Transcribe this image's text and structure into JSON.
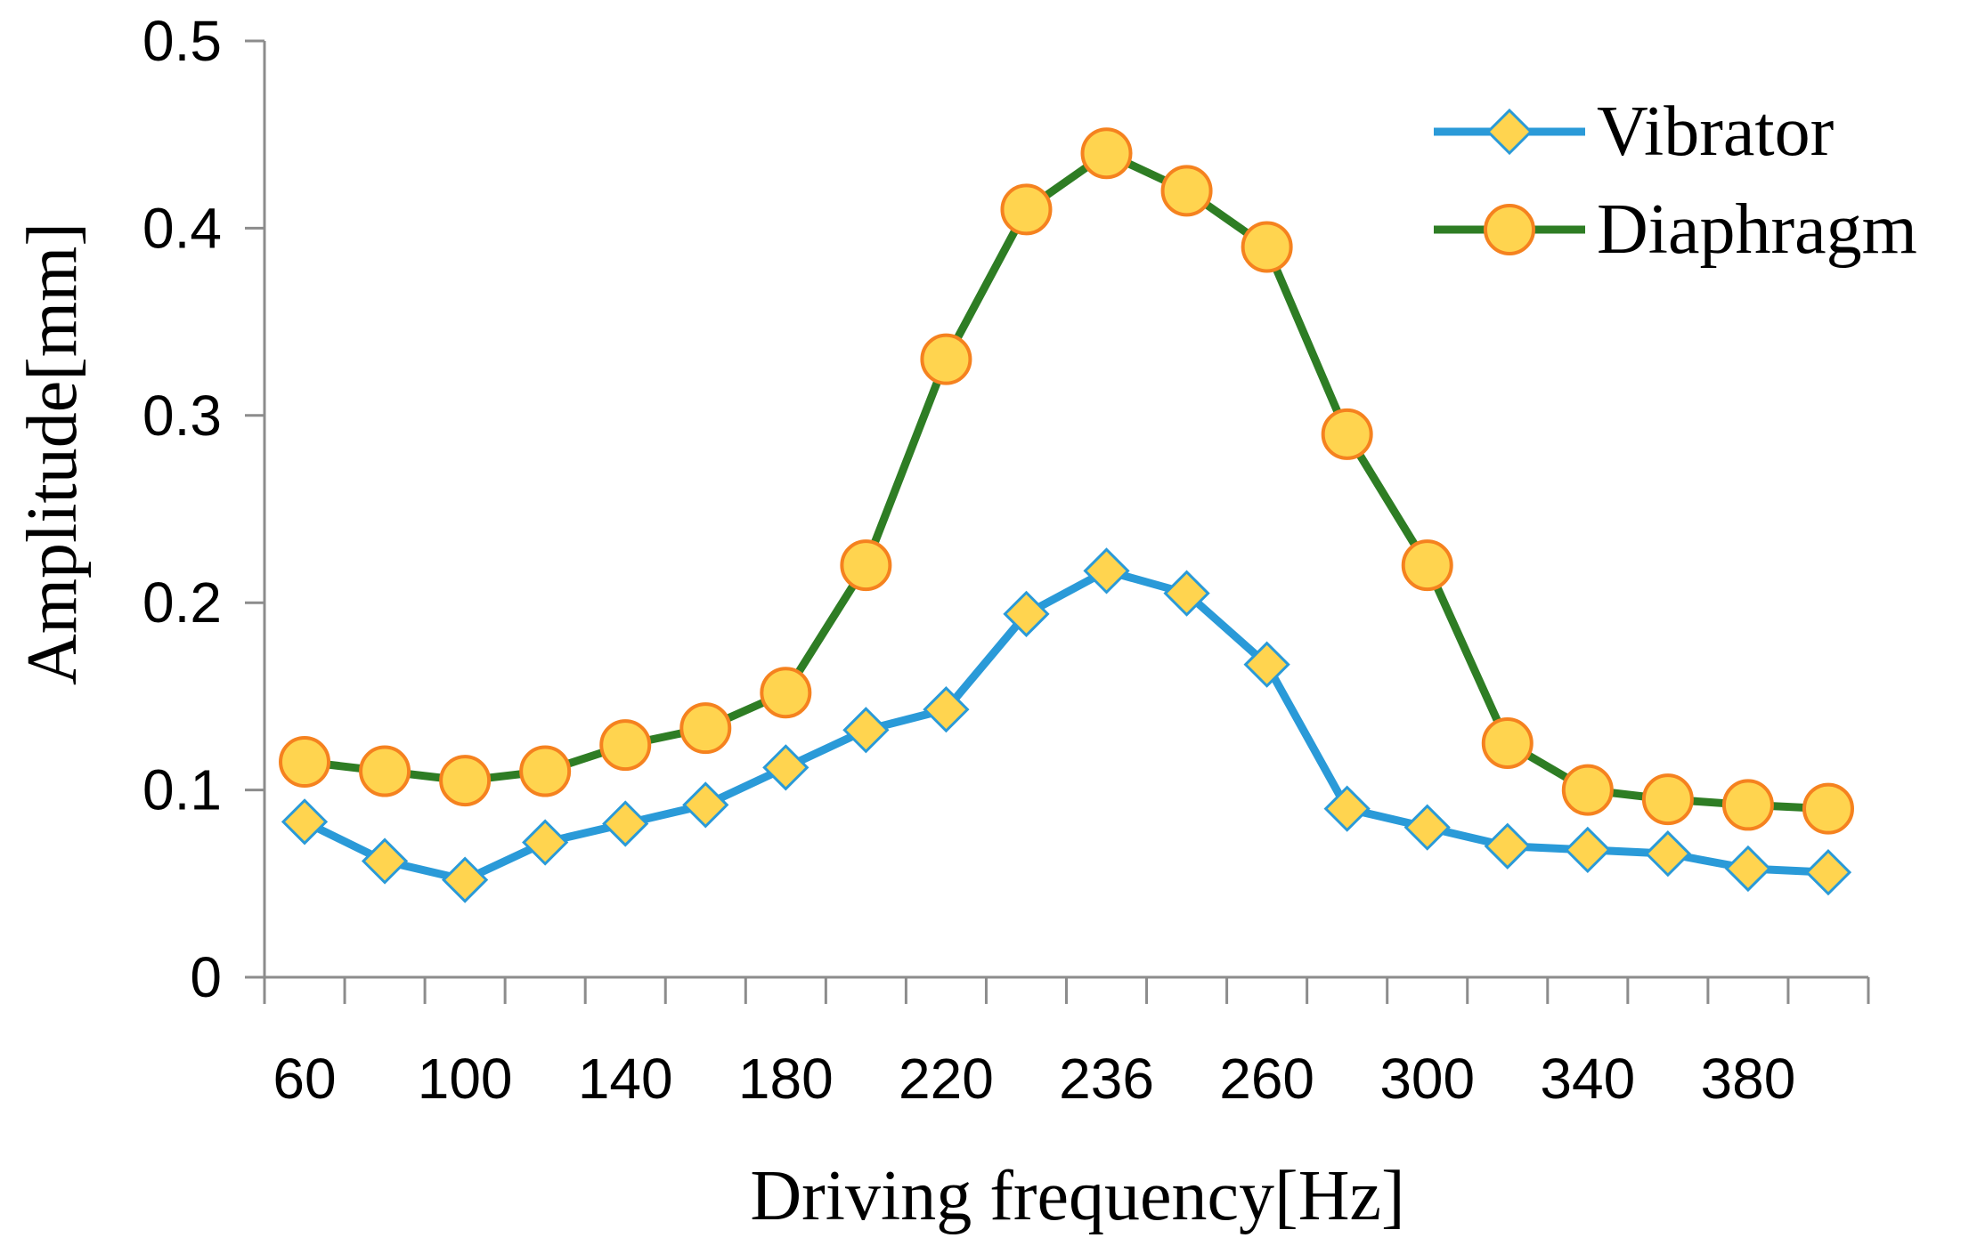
{
  "chart_data": {
    "type": "line",
    "title": "",
    "xlabel": "Driving frequency[Hz]",
    "ylabel": "Amplitude[mm]",
    "ylim": [
      0,
      0.5
    ],
    "y_ticks": [
      "0",
      "0.1",
      "0.2",
      "0.3",
      "0.4",
      "0.5"
    ],
    "x_tick_labels": [
      "60",
      "100",
      "140",
      "180",
      "220",
      "236",
      "260",
      "300",
      "340",
      "380"
    ],
    "grid": false,
    "legend_position": "top-right",
    "series": [
      {
        "name": "Vibrator",
        "color": "#2A9AD8",
        "marker": "diamond",
        "marker_fill": "#FFD44F",
        "marker_edge": "#2A9AD8",
        "values": [
          0.083,
          0.062,
          0.052,
          0.072,
          0.082,
          0.092,
          0.112,
          0.132,
          0.143,
          0.194,
          0.217,
          0.205,
          0.167,
          0.09,
          0.08,
          0.07,
          0.068,
          0.066,
          0.058,
          0.056
        ]
      },
      {
        "name": "Diaphragm",
        "color": "#2E7D24",
        "marker": "circle",
        "marker_fill": "#FFD44F",
        "marker_edge": "#F5821F",
        "values": [
          0.115,
          0.11,
          0.105,
          0.11,
          0.124,
          0.133,
          0.152,
          0.22,
          0.33,
          0.41,
          0.44,
          0.42,
          0.39,
          0.29,
          0.22,
          0.125,
          0.1,
          0.095,
          0.092,
          0.09
        ]
      }
    ]
  }
}
